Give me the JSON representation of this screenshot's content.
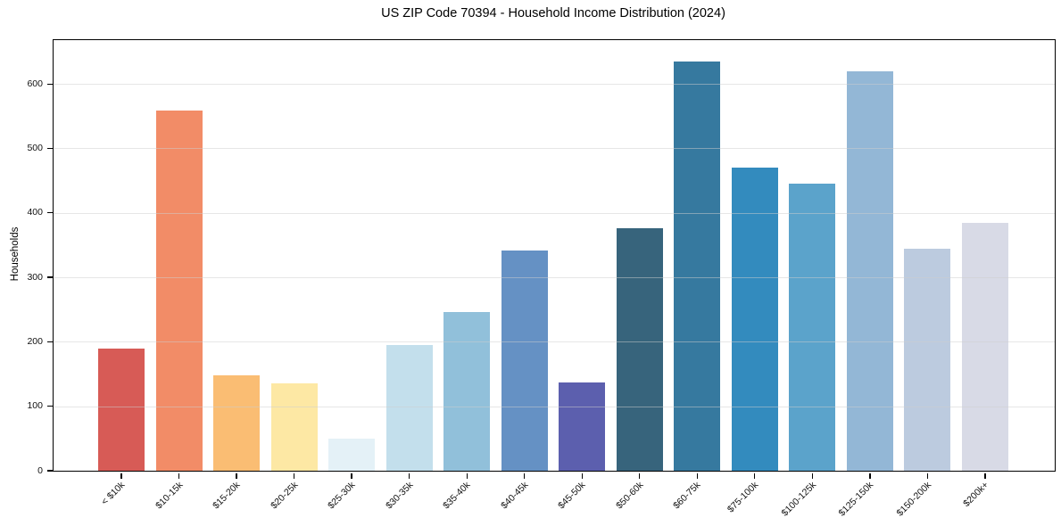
{
  "chart_data": {
    "type": "bar",
    "title": "US ZIP Code 70394 - Household Income Distribution (2024)",
    "xlabel": "",
    "ylabel": "Households",
    "ylim": [
      0,
      668
    ],
    "yticks": [
      0,
      100,
      200,
      300,
      400,
      500,
      600
    ],
    "grid": "horizontal, drawn over bars, light grey",
    "legend": "none",
    "categories": [
      "< $10k",
      "$10-15k",
      "$15-20k",
      "$20-25k",
      "$25-30k",
      "$30-35k",
      "$35-40k",
      "$40-45k",
      "$45-50k",
      "$50-60k",
      "$60-75k",
      "$75-100k",
      "$100-125k",
      "$125-150k",
      "$150-200k",
      "$200k+"
    ],
    "values": [
      190,
      559,
      148,
      136,
      50,
      195,
      246,
      341,
      137,
      376,
      635,
      470,
      446,
      620,
      344,
      385
    ],
    "bar_colors": [
      "#d75b56",
      "#f28c67",
      "#fabd73",
      "#fde8a4",
      "#e4f1f7",
      "#c3dfec",
      "#91c0da",
      "#6591c4",
      "#5c5fae",
      "#37647c",
      "#36799f",
      "#338bbe",
      "#5ba3cb",
      "#93b7d6",
      "#bccbdf",
      "#d8dae6"
    ],
    "axis_color": "#000000",
    "background_color": "#ffffff"
  }
}
